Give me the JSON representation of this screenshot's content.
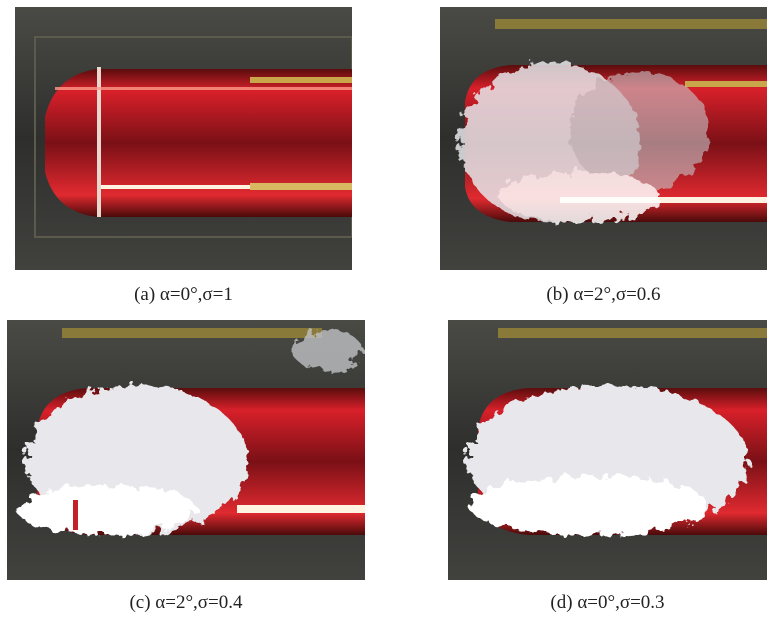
{
  "figure": {
    "panels": [
      {
        "caption": "(a) α=0°,σ=1"
      },
      {
        "caption": "(b) α=2°,σ=0.6"
      },
      {
        "caption": "(c) α=2°,σ=0.4"
      },
      {
        "caption": "(d) α=0°,σ=0.3"
      }
    ]
  }
}
